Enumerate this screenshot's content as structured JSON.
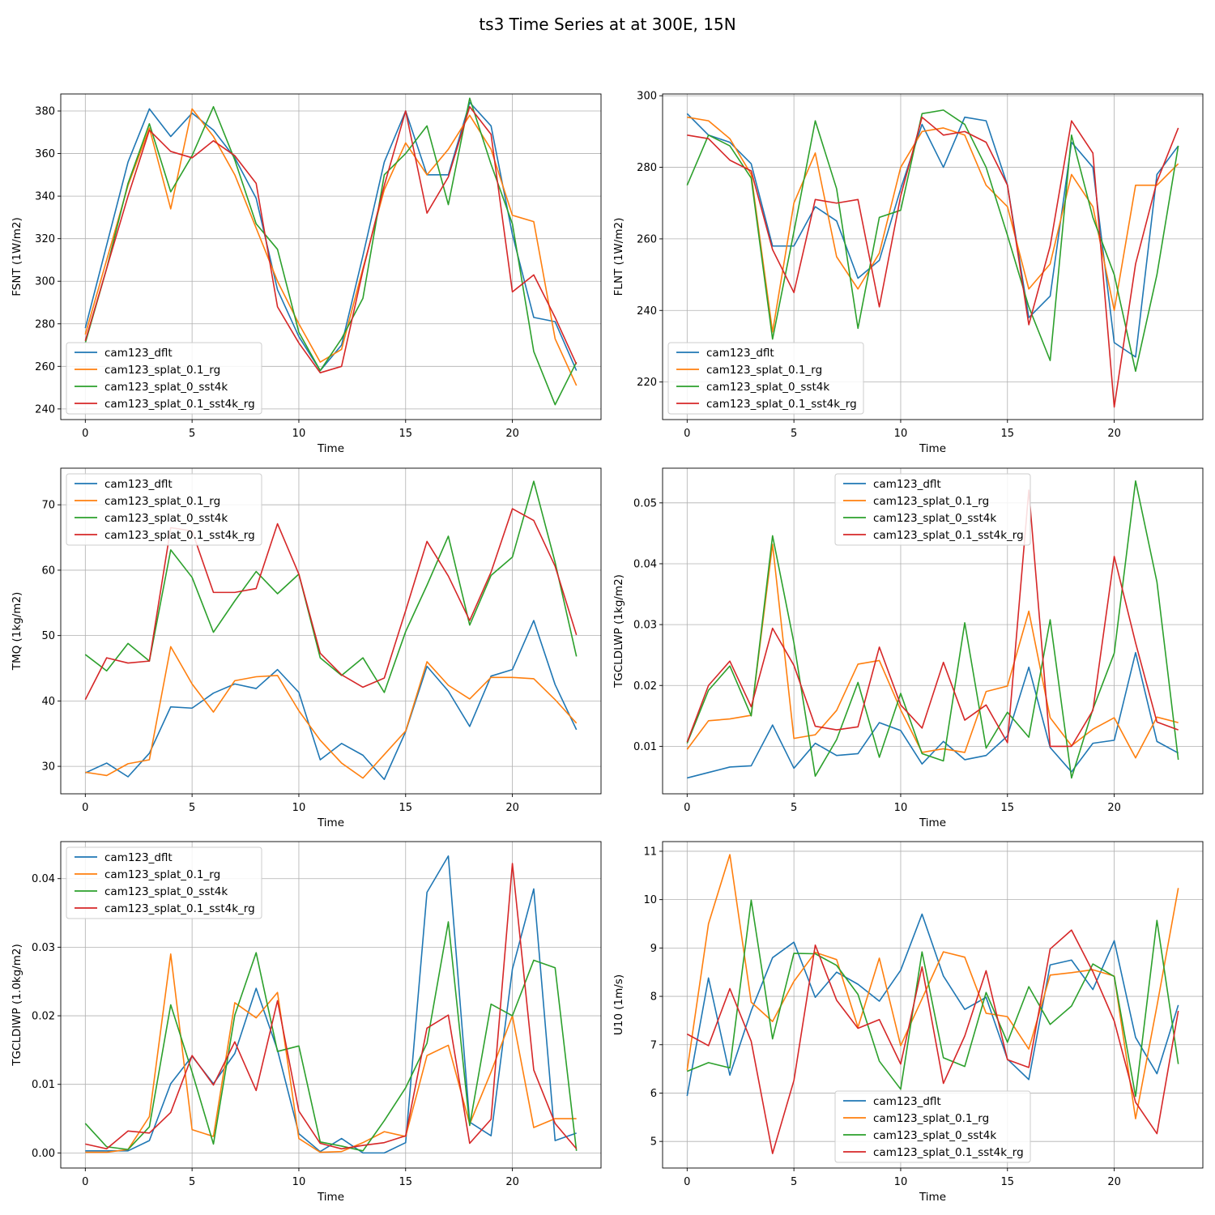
{
  "title": "ts3 Time Series at at 300E, 15N",
  "series_names": [
    "cam123_dflt",
    "cam123_splat_0.1_rg",
    "cam123_splat_0_sst4k",
    "cam123_splat_0.1_sst4k_rg"
  ],
  "colors": [
    "#1f77b4",
    "#ff7f0e",
    "#2ca02c",
    "#d62728"
  ],
  "chart_data": [
    {
      "type": "line",
      "xlabel": "Time",
      "ylabel": "FSNT (1W/m2)",
      "x": [
        0,
        1,
        2,
        3,
        4,
        5,
        6,
        7,
        8,
        9,
        10,
        11,
        12,
        13,
        14,
        15,
        16,
        17,
        18,
        19,
        20,
        21,
        22,
        23
      ],
      "xlim": [
        -1.15,
        24.15
      ],
      "ylim": [
        235,
        388
      ],
      "xticks": [
        0,
        5,
        10,
        15,
        20
      ],
      "yticks": [
        240,
        260,
        280,
        300,
        320,
        340,
        360,
        380
      ],
      "ytick_labels": [
        "240",
        "260",
        "280",
        "300",
        "320",
        "340",
        "360",
        "380"
      ],
      "legend": "lower-left",
      "series": [
        {
          "name": "cam123_dflt",
          "values": [
            278,
            317,
            356,
            381,
            368,
            379,
            371,
            358,
            339,
            296,
            274,
            258,
            270,
            312,
            356,
            380,
            350,
            350,
            384,
            373,
            322,
            283,
            281,
            258
          ]
        },
        {
          "name": "cam123_splat_0.1_rg",
          "values": [
            275,
            310,
            345,
            372,
            334,
            381,
            368,
            350,
            325,
            300,
            280,
            262,
            268,
            306,
            343,
            365,
            350,
            362,
            378,
            362,
            331,
            328,
            273,
            251
          ]
        },
        {
          "name": "cam123_splat_0_sst4k",
          "values": [
            271,
            306,
            346,
            374,
            342,
            359,
            382,
            357,
            327,
            315,
            276,
            258,
            273,
            292,
            350,
            360,
            373,
            336,
            386,
            355,
            327,
            267,
            242,
            262
          ]
        },
        {
          "name": "cam123_splat_0.1_sst4k_rg",
          "values": [
            272,
            306,
            340,
            371,
            361,
            358,
            366,
            359,
            346,
            288,
            271,
            257,
            260,
            305,
            345,
            380,
            332,
            349,
            382,
            369,
            295,
            303,
            283,
            261
          ]
        }
      ]
    },
    {
      "type": "line",
      "xlabel": "Time",
      "ylabel": "FLNT (1W/m2)",
      "x": [
        0,
        1,
        2,
        3,
        4,
        5,
        6,
        7,
        8,
        9,
        10,
        11,
        12,
        13,
        14,
        15,
        16,
        17,
        18,
        19,
        20,
        21,
        22,
        23
      ],
      "xlim": [
        -1.15,
        24.15
      ],
      "ylim": [
        209.5,
        300.5
      ],
      "xticks": [
        0,
        5,
        10,
        15,
        20
      ],
      "yticks": [
        220,
        240,
        260,
        280,
        300
      ],
      "ytick_labels": [
        "220",
        "240",
        "260",
        "280",
        "300"
      ],
      "legend": "lower-left",
      "series": [
        {
          "name": "cam123_dflt",
          "values": [
            295,
            289,
            287,
            281,
            258,
            258,
            269,
            265,
            249,
            254,
            274,
            292,
            280,
            294,
            293,
            275,
            238,
            244,
            287,
            280,
            231,
            227,
            278,
            286
          ]
        },
        {
          "name": "cam123_splat_0.1_rg",
          "values": [
            294,
            293,
            288,
            278,
            234,
            270,
            284,
            255,
            246,
            256,
            280,
            290,
            291,
            289,
            275,
            269,
            246,
            253,
            278,
            269,
            240,
            275,
            275,
            281
          ]
        },
        {
          "name": "cam123_splat_0_sst4k",
          "values": [
            275,
            289,
            286,
            277,
            232,
            262,
            293,
            274,
            235,
            266,
            268,
            295,
            296,
            292,
            280,
            261,
            241,
            226,
            289,
            266,
            250,
            223,
            250,
            286
          ]
        },
        {
          "name": "cam123_splat_0.1_sst4k_rg",
          "values": [
            289,
            288,
            282,
            279,
            257,
            245,
            271,
            270,
            271,
            241,
            272,
            294,
            289,
            290,
            287,
            275,
            236,
            258,
            293,
            284,
            213,
            253,
            276,
            291
          ]
        }
      ]
    },
    {
      "type": "line",
      "xlabel": "Time",
      "ylabel": "TMQ (1kg/m2)",
      "x": [
        0,
        1,
        2,
        3,
        4,
        5,
        6,
        7,
        8,
        9,
        10,
        11,
        12,
        13,
        14,
        15,
        16,
        17,
        18,
        19,
        20,
        21,
        22,
        23
      ],
      "xlim": [
        -1.15,
        24.15
      ],
      "ylim": [
        25.8,
        75.6
      ],
      "xticks": [
        0,
        5,
        10,
        15,
        20
      ],
      "yticks": [
        30,
        40,
        50,
        60,
        70
      ],
      "ytick_labels": [
        "30",
        "40",
        "50",
        "60",
        "70"
      ],
      "legend": "top-left",
      "series": [
        {
          "name": "cam123_dflt",
          "values": [
            29.0,
            30.5,
            28.4,
            32.0,
            39.1,
            38.9,
            41.2,
            42.6,
            41.9,
            44.8,
            41.3,
            31.0,
            33.5,
            31.7,
            28.0,
            35.3,
            45.3,
            41.5,
            36.1,
            43.8,
            44.8,
            52.3,
            42.5,
            35.6
          ]
        },
        {
          "name": "cam123_splat_0.1_rg",
          "values": [
            29.1,
            28.6,
            30.4,
            31.0,
            48.3,
            42.6,
            38.3,
            43.1,
            43.7,
            43.9,
            38.5,
            34.0,
            30.5,
            28.2,
            31.8,
            35.4,
            46.0,
            42.4,
            40.3,
            43.6,
            43.6,
            43.4,
            40.2,
            36.6
          ]
        },
        {
          "name": "cam123_splat_0_sst4k",
          "values": [
            47.1,
            44.6,
            48.8,
            46.1,
            63.1,
            58.9,
            50.5,
            55.3,
            59.8,
            56.4,
            59.4,
            46.6,
            43.9,
            46.6,
            41.3,
            50.6,
            57.7,
            65.2,
            51.6,
            59.2,
            62.0,
            73.6,
            61.2,
            46.8
          ]
        },
        {
          "name": "cam123_splat_0.1_sst4k_rg",
          "values": [
            40.2,
            46.6,
            45.8,
            46.1,
            66.5,
            66.0,
            56.6,
            56.6,
            57.2,
            67.1,
            59.4,
            47.3,
            44.0,
            42.1,
            43.5,
            53.8,
            64.4,
            59.1,
            52.3,
            59.7,
            69.4,
            67.6,
            60.6,
            50.1
          ]
        }
      ]
    },
    {
      "type": "line",
      "xlabel": "Time",
      "ylabel": "TGCLDLWP (1kg/m2)",
      "x": [
        0,
        1,
        2,
        3,
        4,
        5,
        6,
        7,
        8,
        9,
        10,
        11,
        12,
        13,
        14,
        15,
        16,
        17,
        18,
        19,
        20,
        21,
        22,
        23
      ],
      "xlim": [
        -1.15,
        24.15
      ],
      "ylim": [
        0.0022,
        0.0557
      ],
      "xticks": [
        0,
        5,
        10,
        15,
        20
      ],
      "yticks": [
        0.01,
        0.02,
        0.03,
        0.04,
        0.05
      ],
      "ytick_labels": [
        "0.01",
        "0.02",
        "0.03",
        "0.04",
        "0.05"
      ],
      "legend": "top-center",
      "series": [
        {
          "name": "cam123_dflt",
          "values": [
            0.0048,
            0.0057,
            0.0066,
            0.0068,
            0.0135,
            0.0064,
            0.0105,
            0.0085,
            0.0088,
            0.0139,
            0.0126,
            0.0071,
            0.0108,
            0.0078,
            0.0085,
            0.0117,
            0.023,
            0.0098,
            0.0058,
            0.0105,
            0.011,
            0.0254,
            0.0108,
            0.0089
          ]
        },
        {
          "name": "cam123_splat_0.1_rg",
          "values": [
            0.0095,
            0.0142,
            0.0145,
            0.0151,
            0.0432,
            0.0113,
            0.0119,
            0.0159,
            0.0235,
            0.0241,
            0.016,
            0.009,
            0.0096,
            0.009,
            0.019,
            0.0199,
            0.0322,
            0.0147,
            0.0101,
            0.0128,
            0.0147,
            0.0081,
            0.0148,
            0.0139
          ]
        },
        {
          "name": "cam123_splat_0_sst4k",
          "values": [
            0.0105,
            0.0192,
            0.0232,
            0.015,
            0.0446,
            0.027,
            0.0051,
            0.0111,
            0.0205,
            0.0082,
            0.0187,
            0.0088,
            0.0076,
            0.0303,
            0.0097,
            0.0156,
            0.0115,
            0.0308,
            0.0048,
            0.0161,
            0.0253,
            0.0536,
            0.037,
            0.0078
          ]
        },
        {
          "name": "cam123_splat_0.1_sst4k_rg",
          "values": [
            0.0107,
            0.02,
            0.024,
            0.0165,
            0.0294,
            0.0233,
            0.0133,
            0.0127,
            0.0132,
            0.0263,
            0.0168,
            0.013,
            0.0238,
            0.0143,
            0.0168,
            0.0106,
            0.0521,
            0.01,
            0.01,
            0.0159,
            0.0412,
            0.027,
            0.014,
            0.0127
          ]
        }
      ]
    },
    {
      "type": "line",
      "xlabel": "Time",
      "ylabel": "TGCLDIWP (1.0kg/m2)",
      "x": [
        0,
        1,
        2,
        3,
        4,
        5,
        6,
        7,
        8,
        9,
        10,
        11,
        12,
        13,
        14,
        15,
        16,
        17,
        18,
        19,
        20,
        21,
        22,
        23
      ],
      "xlim": [
        -1.15,
        24.15
      ],
      "ylim": [
        -0.0022,
        0.0454
      ],
      "xticks": [
        0,
        5,
        10,
        15,
        20
      ],
      "yticks": [
        0.0,
        0.01,
        0.02,
        0.03,
        0.04
      ],
      "ytick_labels": [
        "0.00",
        "0.01",
        "0.02",
        "0.03",
        "0.04"
      ],
      "legend": "top-left",
      "series": [
        {
          "name": "cam123_dflt",
          "values": [
            0.0003,
            0.0003,
            0.0003,
            0.0018,
            0.0101,
            0.0141,
            0.0101,
            0.0145,
            0.024,
            0.015,
            0.0028,
            0.0002,
            0.0021,
            0.0,
            0.0,
            0.0015,
            0.038,
            0.0433,
            0.0045,
            0.0025,
            0.0268,
            0.0385,
            0.0018,
            0.0029
          ]
        },
        {
          "name": "cam123_splat_0.1_rg",
          "values": [
            0.0001,
            0.0001,
            0.0005,
            0.0053,
            0.029,
            0.0034,
            0.0024,
            0.0219,
            0.0197,
            0.0234,
            0.0021,
            0.0001,
            0.0002,
            0.0015,
            0.0031,
            0.0024,
            0.0142,
            0.0157,
            0.0042,
            0.0118,
            0.02,
            0.0037,
            0.005,
            0.005
          ]
        },
        {
          "name": "cam123_splat_0_sst4k",
          "values": [
            0.0043,
            0.0009,
            0.0005,
            0.0038,
            0.0216,
            0.0118,
            0.0013,
            0.0201,
            0.0292,
            0.0148,
            0.0156,
            0.0016,
            0.001,
            0.0003,
            0.0047,
            0.0095,
            0.016,
            0.0337,
            0.004,
            0.0217,
            0.02,
            0.0281,
            0.027,
            0.0003
          ]
        },
        {
          "name": "cam123_splat_0.1_sst4k_rg",
          "values": [
            0.0013,
            0.0006,
            0.0032,
            0.0029,
            0.0059,
            0.0142,
            0.0099,
            0.0162,
            0.0091,
            0.0222,
            0.0061,
            0.0014,
            0.0006,
            0.0011,
            0.0015,
            0.0025,
            0.0182,
            0.0201,
            0.0014,
            0.0049,
            0.0422,
            0.0121,
            0.0043,
            0.0006
          ]
        }
      ]
    },
    {
      "type": "line",
      "xlabel": "Time",
      "ylabel": "U10 (1m/s)",
      "x": [
        0,
        1,
        2,
        3,
        4,
        5,
        6,
        7,
        8,
        9,
        10,
        11,
        12,
        13,
        14,
        15,
        16,
        17,
        18,
        19,
        20,
        21,
        22,
        23
      ],
      "xlim": [
        -1.15,
        24.15
      ],
      "ylim": [
        4.45,
        11.2
      ],
      "xticks": [
        0,
        5,
        10,
        15,
        20
      ],
      "yticks": [
        5,
        6,
        7,
        8,
        9,
        10,
        11
      ],
      "ytick_labels": [
        "5",
        "6",
        "7",
        "8",
        "9",
        "10",
        "11"
      ],
      "legend": "bottom-center",
      "series": [
        {
          "name": "cam123_dflt",
          "values": [
            5.94,
            8.38,
            6.37,
            7.7,
            8.8,
            9.12,
            7.98,
            8.5,
            8.25,
            7.9,
            8.54,
            9.7,
            8.42,
            7.73,
            7.98,
            6.7,
            6.28,
            8.65,
            8.75,
            8.14,
            9.15,
            7.15,
            6.4,
            7.82
          ]
        },
        {
          "name": "cam123_splat_0.1_rg",
          "values": [
            6.47,
            9.5,
            10.93,
            7.88,
            7.48,
            8.31,
            8.91,
            8.76,
            7.36,
            8.79,
            6.98,
            7.95,
            8.92,
            8.81,
            7.65,
            7.58,
            6.91,
            8.44,
            8.49,
            8.55,
            8.42,
            5.47,
            7.8,
            10.24
          ]
        },
        {
          "name": "cam123_splat_0_sst4k",
          "values": [
            6.45,
            6.63,
            6.52,
            9.99,
            7.12,
            8.89,
            8.88,
            8.64,
            8.04,
            6.66,
            6.08,
            8.92,
            6.73,
            6.55,
            8.08,
            7.05,
            8.2,
            7.42,
            7.8,
            8.67,
            8.41,
            5.93,
            9.57,
            6.6
          ]
        },
        {
          "name": "cam123_splat_0.1_sst4k_rg",
          "values": [
            7.22,
            6.98,
            8.16,
            7.07,
            4.75,
            6.26,
            9.06,
            7.92,
            7.34,
            7.52,
            6.6,
            8.61,
            6.2,
            7.18,
            8.53,
            6.69,
            6.53,
            8.98,
            9.37,
            8.51,
            7.49,
            5.81,
            5.16,
            7.7
          ]
        }
      ]
    }
  ]
}
